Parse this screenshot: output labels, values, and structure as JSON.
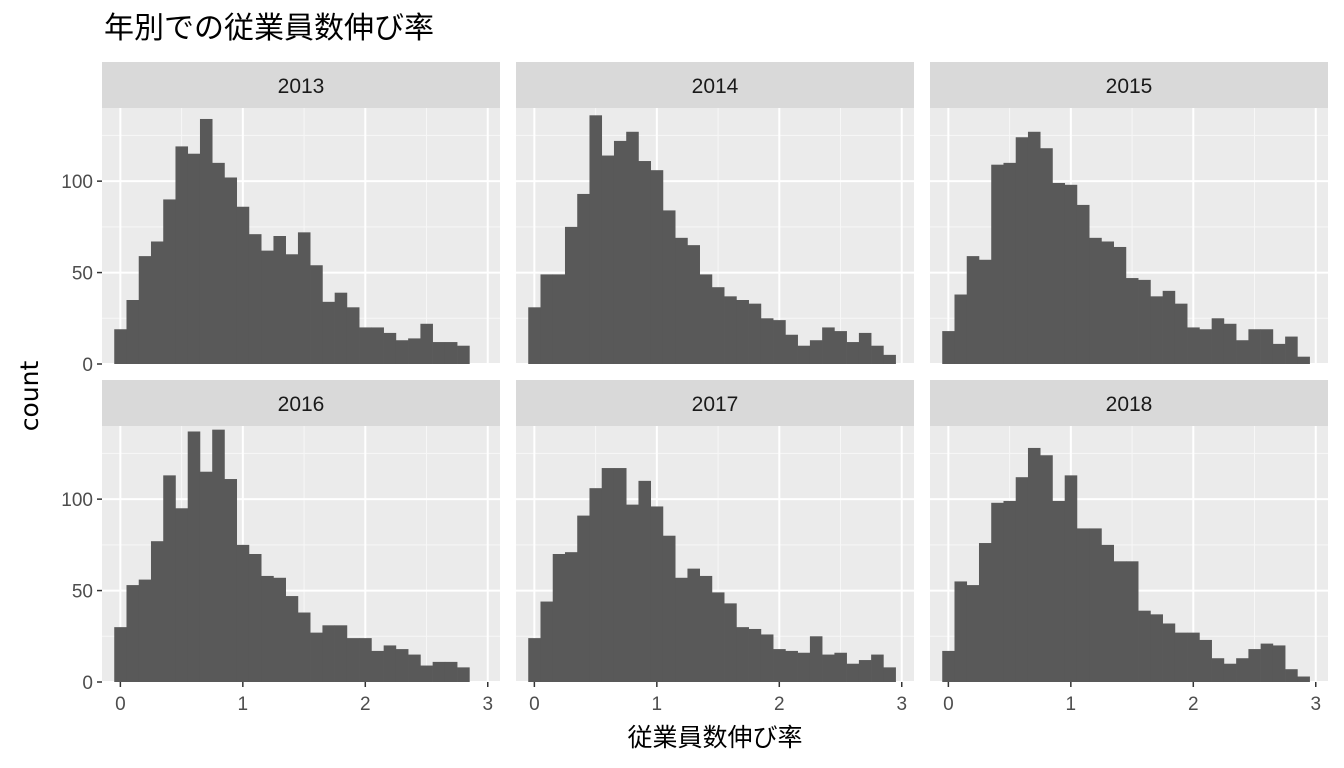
{
  "chart_data": {
    "type": "bar",
    "title": "年別での従業員数伸び率",
    "xlabel": "従業員数伸び率",
    "ylabel": "count",
    "xlim": [
      -0.15,
      3.1
    ],
    "ylim": [
      0,
      140
    ],
    "x_ticks": [
      0,
      1,
      2,
      3
    ],
    "y_ticks": [
      0,
      50,
      100
    ],
    "bin_start": -0.05,
    "bin_width": 0.1,
    "grid": true,
    "facets": [
      {
        "label": "2013",
        "values": [
          19,
          35,
          59,
          67,
          90,
          119,
          115,
          134,
          110,
          102,
          86,
          71,
          62,
          70,
          60,
          72,
          54,
          34,
          39,
          31,
          20,
          20,
          17,
          13,
          14,
          22,
          12,
          12,
          10
        ]
      },
      {
        "label": "2014",
        "values": [
          31,
          49,
          49,
          75,
          93,
          136,
          114,
          122,
          127,
          111,
          106,
          84,
          69,
          65,
          49,
          42,
          37,
          35,
          33,
          25,
          24,
          16,
          10,
          13,
          20,
          18,
          12,
          17,
          10,
          5
        ]
      },
      {
        "label": "2015",
        "values": [
          18,
          38,
          59,
          57,
          109,
          110,
          124,
          127,
          118,
          99,
          98,
          87,
          69,
          67,
          64,
          47,
          46,
          37,
          40,
          33,
          20,
          19,
          25,
          22,
          13,
          19,
          19,
          11,
          15,
          4
        ]
      },
      {
        "label": "2016",
        "values": [
          30,
          53,
          56,
          77,
          113,
          95,
          137,
          115,
          138,
          111,
          75,
          70,
          58,
          57,
          47,
          38,
          27,
          31,
          31,
          24,
          24,
          17,
          20,
          18,
          15,
          9,
          11,
          11,
          8
        ]
      },
      {
        "label": "2017",
        "values": [
          24,
          44,
          70,
          71,
          91,
          106,
          117,
          117,
          97,
          110,
          96,
          80,
          57,
          62,
          58,
          49,
          43,
          30,
          29,
          26,
          18,
          17,
          16,
          25,
          15,
          16,
          10,
          12,
          15,
          8
        ]
      },
      {
        "label": "2018",
        "values": [
          17,
          55,
          53,
          76,
          98,
          99,
          112,
          128,
          124,
          99,
          113,
          84,
          84,
          75,
          66,
          66,
          39,
          37,
          32,
          27,
          27,
          23,
          13,
          10,
          13,
          18,
          21,
          20,
          7,
          3
        ]
      }
    ]
  }
}
